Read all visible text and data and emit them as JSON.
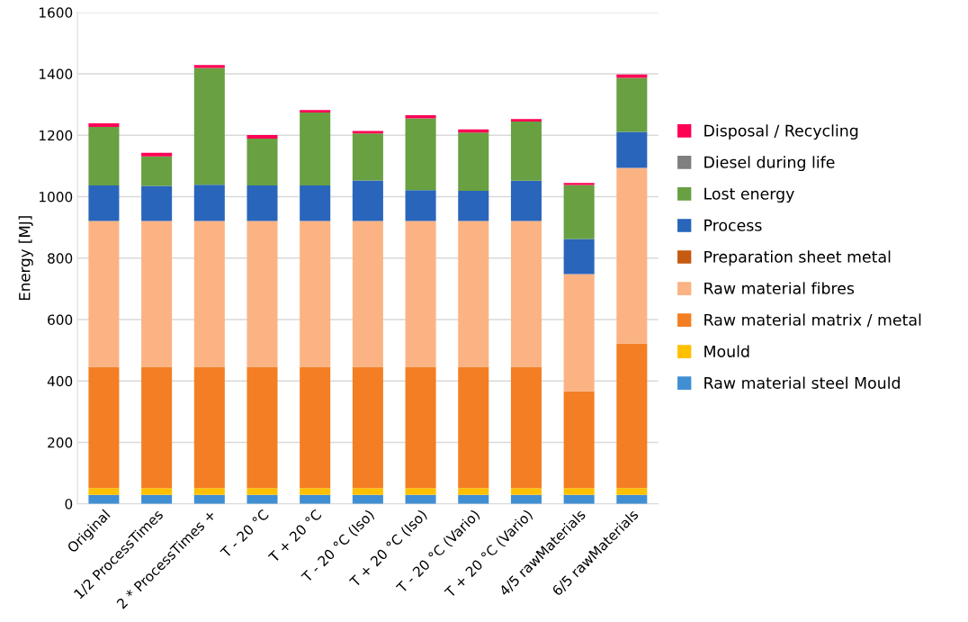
{
  "chart_data": {
    "type": "bar",
    "stacked": true,
    "ylabel": "Energy [MJ]",
    "categories": [
      "Original",
      "1/2 ProcessTimes",
      "2 * ProcessTimes +",
      "T - 20 °C",
      "T + 20 °C",
      "T - 20 °C (Iso)",
      "T + 20 °C (Iso)",
      "T - 20 °C (Vario)",
      "T + 20 °C (Vario)",
      "4/5 rawMaterials",
      "6/5 rawMaterials"
    ],
    "series": [
      {
        "name": "Raw material steel Mould",
        "color": "#418fd3",
        "values": [
          29,
          29,
          29,
          29,
          29,
          29,
          29,
          29,
          29,
          29,
          29
        ]
      },
      {
        "name": "Mould",
        "color": "#ffc000",
        "values": [
          22,
          22,
          22,
          22,
          22,
          22,
          22,
          22,
          22,
          22,
          22
        ]
      },
      {
        "name": "Raw material matrix / metal",
        "color": "#f47e23",
        "values": [
          395,
          395,
          395,
          395,
          395,
          395,
          395,
          395,
          395,
          315,
          471
        ]
      },
      {
        "name": "Raw material fibres",
        "color": "#fbb383",
        "values": [
          475,
          475,
          475,
          475,
          475,
          475,
          475,
          475,
          475,
          382,
          572
        ]
      },
      {
        "name": "Preparation sheet metal",
        "color": "#c55a11",
        "values": [
          0,
          0,
          0,
          0,
          0,
          0,
          0,
          0,
          0,
          0,
          0
        ]
      },
      {
        "name": "Process",
        "color": "#2965bb",
        "values": [
          116,
          114,
          118,
          116,
          116,
          132,
          100,
          98,
          131,
          114,
          117
        ]
      },
      {
        "name": "Lost energy",
        "color": "#68a042",
        "values": [
          190,
          96,
          380,
          152,
          237,
          153,
          234,
          190,
          193,
          176,
          176
        ]
      },
      {
        "name": "Diesel during life",
        "color": "#7f7f7f",
        "values": [
          0,
          0,
          0,
          0,
          0,
          0,
          0,
          0,
          0,
          0,
          0
        ]
      },
      {
        "name": "Disposal / Recycling",
        "color": "#ff0055",
        "values": [
          12,
          12,
          10,
          12,
          8,
          8,
          10,
          10,
          8,
          7,
          11
        ]
      }
    ],
    "ylim": [
      0,
      1600
    ],
    "yticks": [
      0,
      200,
      400,
      600,
      800,
      1000,
      1200,
      1400,
      1600
    ],
    "grid": "y",
    "legend": "right"
  }
}
